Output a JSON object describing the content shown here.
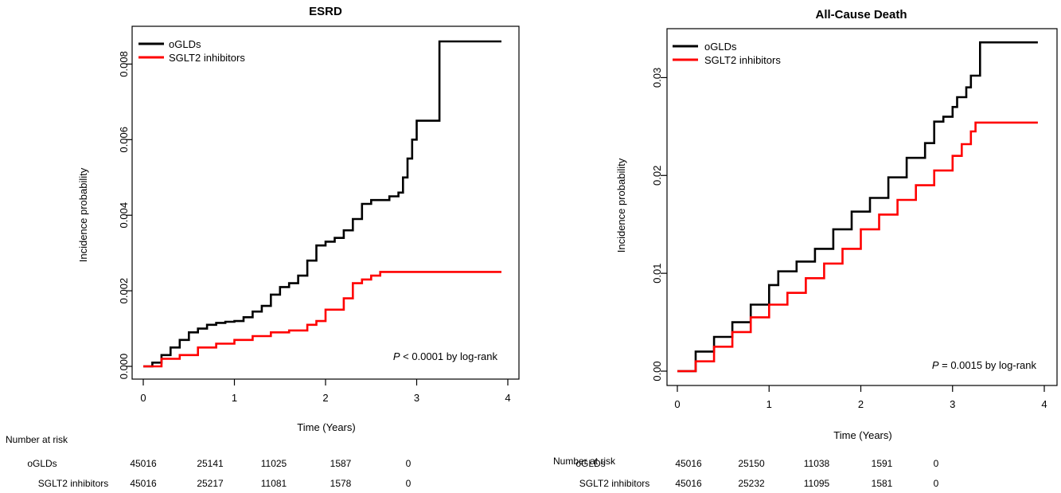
{
  "chart_data": [
    {
      "type": "line",
      "title": "ESRD",
      "xlabel": "Time  (Years)",
      "ylabel": "Incidence probability",
      "xlim": [
        0,
        4
      ],
      "ylim": [
        0,
        0.009
      ],
      "x_ticks": [
        "0",
        "1",
        "2",
        "3",
        "4"
      ],
      "y_ticks": [
        "0.000",
        "0.002",
        "0.004",
        "0.006",
        "0.008"
      ],
      "legend_position": "top-left",
      "annotation": {
        "italic": "P",
        "text": " < 0.0001 by log-rank"
      },
      "series": [
        {
          "name": "oGLDs",
          "color": "#000000",
          "points": [
            [
              0,
              0
            ],
            [
              0.1,
              0.0001
            ],
            [
              0.2,
              0.0003
            ],
            [
              0.3,
              0.0005
            ],
            [
              0.4,
              0.0007
            ],
            [
              0.5,
              0.0009
            ],
            [
              0.6,
              0.001
            ],
            [
              0.7,
              0.0011
            ],
            [
              0.8,
              0.00115
            ],
            [
              0.9,
              0.00118
            ],
            [
              1.0,
              0.0012
            ],
            [
              1.1,
              0.0013
            ],
            [
              1.2,
              0.00145
            ],
            [
              1.3,
              0.0016
            ],
            [
              1.4,
              0.0019
            ],
            [
              1.5,
              0.0021
            ],
            [
              1.6,
              0.0022
            ],
            [
              1.7,
              0.0024
            ],
            [
              1.8,
              0.0028
            ],
            [
              1.9,
              0.0032
            ],
            [
              2.0,
              0.0033
            ],
            [
              2.1,
              0.0034
            ],
            [
              2.2,
              0.0036
            ],
            [
              2.3,
              0.0039
            ],
            [
              2.4,
              0.0043
            ],
            [
              2.5,
              0.0044
            ],
            [
              2.6,
              0.0044
            ],
            [
              2.7,
              0.0045
            ],
            [
              2.8,
              0.0046
            ],
            [
              2.85,
              0.005
            ],
            [
              2.9,
              0.0055
            ],
            [
              2.95,
              0.006
            ],
            [
              3.0,
              0.0065
            ],
            [
              3.25,
              0.0065
            ],
            [
              3.25,
              0.0086
            ],
            [
              3.93,
              0.0086
            ]
          ]
        },
        {
          "name": "SGLT2 inhibitors",
          "color": "#ff0000",
          "points": [
            [
              0,
              0
            ],
            [
              0.2,
              0.0002
            ],
            [
              0.4,
              0.0003
            ],
            [
              0.6,
              0.0005
            ],
            [
              0.8,
              0.0006
            ],
            [
              1.0,
              0.0007
            ],
            [
              1.2,
              0.0008
            ],
            [
              1.4,
              0.0009
            ],
            [
              1.6,
              0.00095
            ],
            [
              1.8,
              0.0011
            ],
            [
              1.9,
              0.0012
            ],
            [
              2.0,
              0.0015
            ],
            [
              2.1,
              0.0015
            ],
            [
              2.2,
              0.0018
            ],
            [
              2.3,
              0.0022
            ],
            [
              2.4,
              0.0023
            ],
            [
              2.5,
              0.0024
            ],
            [
              2.6,
              0.0025
            ],
            [
              3.93,
              0.0025
            ]
          ]
        }
      ],
      "risk_table": {
        "header": "Number at risk",
        "rows": [
          {
            "label": "oGLDs",
            "values": [
              "45016",
              "25141",
              "11025",
              "1587",
              "0"
            ]
          },
          {
            "label": "SGLT2 inhibitors",
            "values": [
              "45016",
              "25217",
              "11081",
              "1578",
              "0"
            ]
          }
        ]
      }
    },
    {
      "type": "line",
      "title": "All-Cause Death",
      "xlabel": "Time (Years)",
      "ylabel": "Incidence probability",
      "xlim": [
        0,
        4
      ],
      "ylim": [
        0,
        0.035
      ],
      "x_ticks": [
        "0",
        "1",
        "2",
        "3",
        "4"
      ],
      "y_ticks": [
        "0.00",
        "0.01",
        "0.02",
        "0.03"
      ],
      "legend_position": "top-left",
      "annotation": {
        "italic": "P",
        "text": " = 0.0015 by log-rank"
      },
      "series": [
        {
          "name": "oGLDs",
          "color": "#000000",
          "points": [
            [
              0,
              0
            ],
            [
              0.2,
              0.002
            ],
            [
              0.4,
              0.0035
            ],
            [
              0.6,
              0.005
            ],
            [
              0.8,
              0.0068
            ],
            [
              1.0,
              0.0088
            ],
            [
              1.1,
              0.0102
            ],
            [
              1.3,
              0.0112
            ],
            [
              1.5,
              0.0125
            ],
            [
              1.7,
              0.0145
            ],
            [
              1.9,
              0.0163
            ],
            [
              2.1,
              0.0177
            ],
            [
              2.3,
              0.0198
            ],
            [
              2.5,
              0.0218
            ],
            [
              2.7,
              0.0233
            ],
            [
              2.8,
              0.0255
            ],
            [
              2.9,
              0.026
            ],
            [
              3.0,
              0.027
            ],
            [
              3.05,
              0.028
            ],
            [
              3.15,
              0.029
            ],
            [
              3.2,
              0.0302
            ],
            [
              3.3,
              0.0336
            ],
            [
              3.93,
              0.0336
            ]
          ]
        },
        {
          "name": "SGLT2 inhibitors",
          "color": "#ff0000",
          "points": [
            [
              0,
              0
            ],
            [
              0.2,
              0.001
            ],
            [
              0.4,
              0.0025
            ],
            [
              0.6,
              0.004
            ],
            [
              0.8,
              0.0055
            ],
            [
              1.0,
              0.0068
            ],
            [
              1.2,
              0.008
            ],
            [
              1.4,
              0.0095
            ],
            [
              1.6,
              0.011
            ],
            [
              1.8,
              0.0125
            ],
            [
              2.0,
              0.0145
            ],
            [
              2.2,
              0.016
            ],
            [
              2.4,
              0.0175
            ],
            [
              2.6,
              0.019
            ],
            [
              2.8,
              0.0205
            ],
            [
              3.0,
              0.022
            ],
            [
              3.1,
              0.0232
            ],
            [
              3.2,
              0.0245
            ],
            [
              3.25,
              0.0254
            ],
            [
              3.93,
              0.0254
            ]
          ]
        }
      ],
      "risk_table": {
        "header": "Number at risk",
        "rows": [
          {
            "label": "oGLDs",
            "values": [
              "45016",
              "25150",
              "11038",
              "1591",
              "0"
            ]
          },
          {
            "label": "SGLT2 inhibitors",
            "values": [
              "45016",
              "25232",
              "11095",
              "1581",
              "0"
            ]
          }
        ]
      }
    }
  ]
}
